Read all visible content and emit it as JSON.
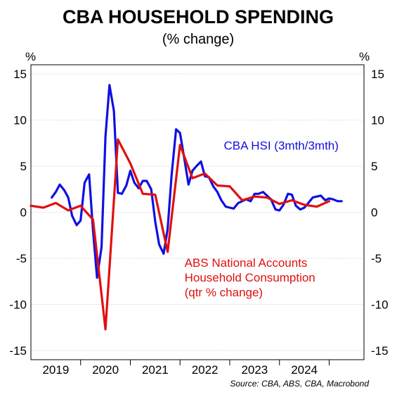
{
  "chart_data": {
    "type": "line",
    "title": "CBA HOUSEHOLD SPENDING",
    "subtitle": "(% change)",
    "ylabel_left": "%",
    "ylabel_right": "%",
    "source": "Source: CBA, ABS, CBA, Macrobond",
    "ylim": [
      -16,
      16
    ],
    "yticks": [
      15,
      10,
      5,
      0,
      -5,
      -10,
      -15
    ],
    "ytick_labels": [
      "15",
      "10",
      "5",
      "0",
      "-5",
      "-10",
      "-15"
    ],
    "xlim": [
      2018.5,
      2025.2
    ],
    "year_labels": [
      "2019",
      "2020",
      "2021",
      "2022",
      "2023",
      "2024"
    ],
    "year_label_x": [
      2019.0,
      2020.0,
      2021.0,
      2022.0,
      2023.0,
      2024.0
    ],
    "year_separators": [
      2019.5,
      2020.5,
      2021.5,
      2022.5,
      2023.5,
      2024.5
    ],
    "grid": true,
    "series": [
      {
        "name": "CBA HSI (3mth/3mth)",
        "color": "#1010e0",
        "x": [
          2018.92,
          2019.0,
          2019.08,
          2019.17,
          2019.25,
          2019.33,
          2019.42,
          2019.5,
          2019.58,
          2019.67,
          2019.75,
          2019.83,
          2019.92,
          2020.0,
          2020.08,
          2020.17,
          2020.25,
          2020.33,
          2020.42,
          2020.5,
          2020.58,
          2020.67,
          2020.75,
          2020.83,
          2020.92,
          2021.0,
          2021.08,
          2021.17,
          2021.25,
          2021.33,
          2021.42,
          2021.5,
          2021.58,
          2021.67,
          2021.75,
          2021.83,
          2021.92,
          2022.0,
          2022.08,
          2022.17,
          2022.25,
          2022.33,
          2022.42,
          2022.5,
          2022.58,
          2022.67,
          2022.75,
          2022.83,
          2022.92,
          2023.0,
          2023.08,
          2023.17,
          2023.25,
          2023.33,
          2023.42,
          2023.5,
          2023.58,
          2023.67,
          2023.75,
          2023.83,
          2023.92,
          2024.0,
          2024.08,
          2024.17,
          2024.25,
          2024.33,
          2024.42,
          2024.5,
          2024.58,
          2024.67,
          2024.75
        ],
        "values": [
          1.6,
          2.2,
          3.0,
          2.4,
          1.6,
          -0.4,
          -1.4,
          -0.9,
          3.2,
          4.1,
          -2.0,
          -7.1,
          -3.8,
          8.2,
          13.8,
          11.0,
          2.1,
          2.0,
          2.9,
          4.5,
          3.2,
          2.6,
          3.4,
          3.4,
          2.5,
          -1.0,
          -3.5,
          -4.5,
          -1.8,
          4.0,
          9.0,
          8.6,
          6.0,
          3.0,
          4.5,
          5.0,
          5.5,
          3.9,
          3.8,
          2.8,
          2.2,
          1.3,
          0.6,
          0.5,
          0.4,
          1.0,
          1.2,
          1.4,
          1.2,
          2.0,
          2.0,
          2.2,
          1.8,
          1.4,
          0.3,
          0.2,
          0.8,
          2.0,
          1.9,
          0.7,
          0.3,
          0.5,
          1.0,
          1.6,
          1.7,
          1.8,
          1.3,
          1.5,
          1.4,
          1.2,
          1.2
        ]
      },
      {
        "name": "ABS National Accounts Household Consumption (qtr % change)",
        "color": "#e01010",
        "x": [
          2018.5,
          2018.75,
          2019.0,
          2019.25,
          2019.5,
          2019.75,
          2020.0,
          2020.25,
          2020.5,
          2020.75,
          2021.0,
          2021.25,
          2021.5,
          2021.75,
          2022.0,
          2022.25,
          2022.5,
          2022.75,
          2023.0,
          2023.25,
          2023.5,
          2023.75,
          2024.0,
          2024.25,
          2024.5
        ],
        "values": [
          0.7,
          0.5,
          1.0,
          0.2,
          0.7,
          -0.8,
          -12.7,
          7.9,
          5.3,
          2.0,
          1.9,
          -4.3,
          7.3,
          3.7,
          4.2,
          2.9,
          2.8,
          1.3,
          1.7,
          1.6,
          0.9,
          1.3,
          0.8,
          0.6,
          1.2
        ]
      }
    ],
    "annotations": [
      {
        "lines": [
          "CBA HSI (3mth/3mth)"
        ],
        "color": "#1010e0"
      },
      {
        "lines": [
          "ABS National Accounts",
          "Household Consumption",
          "(qtr % change)"
        ],
        "color": "#e01010"
      }
    ]
  }
}
